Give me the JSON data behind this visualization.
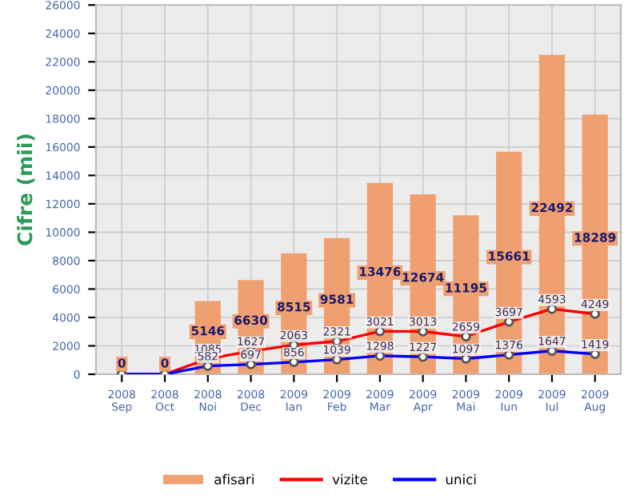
{
  "chart_data": {
    "type": "bar",
    "ylabel": "Cifre (mii)",
    "categories": [
      "2008\nSep",
      "2008\nOct",
      "2008\nNoi",
      "2008\nDec",
      "2009\nIan",
      "2009\nFeb",
      "2009\nMar",
      "2009\nApr",
      "2009\nMai",
      "2009\nIun",
      "2009\nIul",
      "2009\nAug"
    ],
    "series": [
      {
        "name": "afisari",
        "color": "#f0a070",
        "values": [
          0,
          0,
          5146,
          6630,
          8515,
          9581,
          13476,
          12674,
          11195,
          15661,
          22492,
          18289
        ],
        "value_labels": [
          "0",
          "0",
          "5146",
          "6630",
          "8515",
          "9581",
          "13476",
          "12674",
          "11195",
          "15661",
          "22492",
          "18289"
        ]
      },
      {
        "name": "vizite",
        "type": "line",
        "color": "#ff0000",
        "marker": "circle",
        "values": [
          0,
          0,
          1085,
          1627,
          2063,
          2321,
          3021,
          3013,
          2659,
          3697,
          4593,
          4249
        ],
        "value_labels": [
          null,
          null,
          "1085",
          "1627",
          "2063",
          "2321",
          "3021",
          "3013",
          "2659",
          "3697",
          "4593",
          "4249"
        ]
      },
      {
        "name": "unici",
        "type": "line",
        "color": "#0000ff",
        "marker": "circle",
        "values": [
          0,
          0,
          582,
          697,
          856,
          1039,
          1298,
          1227,
          1097,
          1376,
          1647,
          1419
        ],
        "value_labels": [
          null,
          null,
          "582",
          "697",
          "856",
          "1039",
          "1298",
          "1227",
          "1097",
          "1376",
          "1647",
          "1419"
        ]
      }
    ],
    "ylim": [
      0,
      26000
    ],
    "yticks": [
      0,
      2000,
      4000,
      6000,
      8000,
      10000,
      12000,
      14000,
      16000,
      18000,
      20000,
      22000,
      24000,
      26000
    ],
    "grid": true,
    "legend": "bottom"
  }
}
